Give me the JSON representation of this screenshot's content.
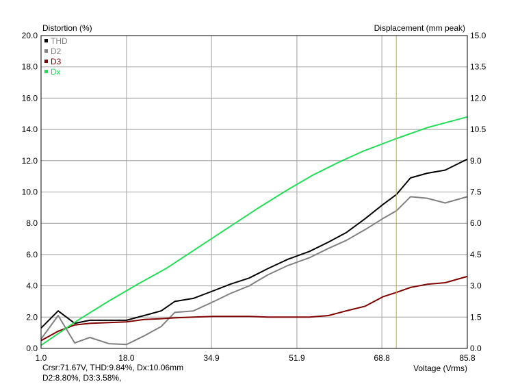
{
  "chart_data": {
    "type": "line",
    "y_left_label": "Distortion (%)",
    "y_right_label": "Displacement (mm peak)",
    "x_label": "Voltage (Vrms)",
    "x_range": [
      1.0,
      85.8
    ],
    "y_left_range": [
      0,
      20
    ],
    "y_right_range": [
      0,
      15
    ],
    "x_ticks": [
      "1.0",
      "18.0",
      "34.9",
      "51.9",
      "68.8",
      "85.8"
    ],
    "x_tick_values": [
      1.0,
      18.0,
      34.9,
      51.9,
      68.8,
      85.8
    ],
    "y_left_ticks": [
      "0.0",
      "2.0",
      "4.0",
      "6.0",
      "8.0",
      "10.0",
      "12.0",
      "14.0",
      "16.0",
      "18.0",
      "20.0"
    ],
    "y_left_tick_values": [
      0,
      2,
      4,
      6,
      8,
      10,
      12,
      14,
      16,
      18,
      20
    ],
    "y_right_ticks": [
      "0.0",
      "1.5",
      "3.0",
      "4.5",
      "6.0",
      "7.5",
      "9.0",
      "10.5",
      "12.0",
      "13.5",
      "15.0"
    ],
    "y_right_tick_values": [
      0,
      1.5,
      3,
      4.5,
      6,
      7.5,
      9,
      10.5,
      12,
      13.5,
      15
    ],
    "grid": true,
    "legend_position": "top-left",
    "cursor_x": 71.67,
    "series": [
      {
        "name": "THD",
        "color": "#000000",
        "axis": "left",
        "x": [
          1.0,
          4.4,
          7.7,
          10.7,
          14.5,
          18.0,
          21.5,
          24.9,
          27.6,
          31.3,
          35.4,
          38.6,
          42.4,
          46.1,
          50.1,
          54.4,
          58.2,
          61.7,
          65.5,
          69.0,
          71.7,
          74.5,
          77.8,
          81.4,
          85.8
        ],
        "y": [
          1.3,
          2.4,
          1.6,
          1.8,
          1.8,
          1.8,
          2.1,
          2.4,
          3.0,
          3.2,
          3.7,
          4.1,
          4.5,
          5.1,
          5.7,
          6.2,
          6.8,
          7.4,
          8.3,
          9.2,
          9.84,
          10.9,
          11.2,
          11.4,
          12.1
        ]
      },
      {
        "name": "D2",
        "color": "#808080",
        "axis": "left",
        "x": [
          1.0,
          4.4,
          7.7,
          10.7,
          14.5,
          18.0,
          21.5,
          24.9,
          27.6,
          31.3,
          35.4,
          38.6,
          42.4,
          46.1,
          50.1,
          54.4,
          58.2,
          61.7,
          65.5,
          69.0,
          71.7,
          74.5,
          77.8,
          81.4,
          85.8
        ],
        "y": [
          0.6,
          2.1,
          0.35,
          0.7,
          0.3,
          0.25,
          0.8,
          1.4,
          2.3,
          2.4,
          3.0,
          3.5,
          4.0,
          4.7,
          5.3,
          5.8,
          6.4,
          6.9,
          7.6,
          8.3,
          8.8,
          9.7,
          9.6,
          9.3,
          9.7
        ]
      },
      {
        "name": "D3",
        "color": "#800000",
        "axis": "left",
        "x": [
          1.0,
          4.4,
          7.7,
          10.7,
          14.5,
          18.0,
          21.5,
          24.9,
          27.6,
          31.3,
          35.4,
          38.6,
          42.4,
          46.1,
          50.1,
          54.4,
          58.2,
          61.7,
          65.5,
          69.0,
          71.7,
          74.5,
          77.8,
          81.4,
          85.8
        ],
        "y": [
          0.5,
          1.1,
          1.5,
          1.6,
          1.65,
          1.7,
          1.85,
          1.9,
          1.95,
          2.0,
          2.05,
          2.05,
          2.05,
          2.0,
          2.0,
          2.0,
          2.1,
          2.4,
          2.7,
          3.3,
          3.58,
          3.9,
          4.1,
          4.2,
          4.6
        ]
      },
      {
        "name": "Dx",
        "color": "#22dd55",
        "axis": "right",
        "x": [
          1.0,
          8.0,
          14.0,
          20.0,
          26.0,
          32.0,
          38.0,
          44.0,
          50.0,
          55.0,
          60.0,
          65.0,
          71.67,
          78.0,
          85.8
        ],
        "y": [
          0.15,
          1.3,
          2.2,
          3.05,
          3.85,
          4.8,
          5.75,
          6.7,
          7.6,
          8.3,
          8.9,
          9.45,
          10.06,
          10.6,
          11.1
        ]
      }
    ]
  },
  "readout": {
    "line1": "Crsr:71.67V, THD:9.84%, Dx:10.06mm",
    "line2": "D2:8.80%, D3:3.58%,"
  }
}
